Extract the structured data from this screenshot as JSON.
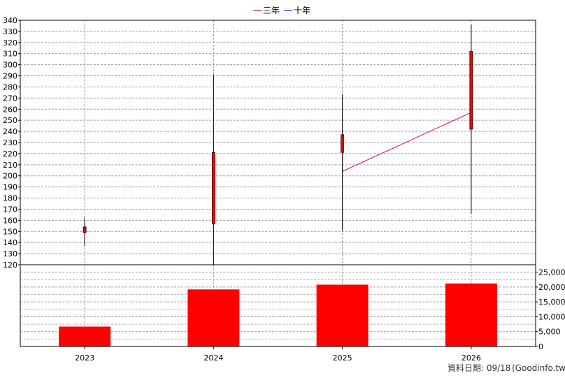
{
  "legend": [
    {
      "name": "三年",
      "color": "#cc0066"
    },
    {
      "name": "十年",
      "color": "#6600cc"
    }
  ],
  "footer": {
    "date_label": "資料日期: 09/18",
    "source": "(Goodinfo.tw)"
  },
  "chart_data": [
    {
      "type": "candlestick",
      "categories": [
        "2023",
        "2024",
        "2025",
        "2026"
      ],
      "series": [
        {
          "values": [
            {
              "high": 162,
              "low": 137,
              "open": 149,
              "close": 154
            },
            {
              "high": 291,
              "low": 120,
              "open": 157,
              "close": 221
            },
            {
              "high": 273,
              "low": 151,
              "open": 221,
              "close": 237
            },
            {
              "high": 336,
              "low": 166,
              "open": 242,
              "close": 312
            }
          ],
          "color": "#ff0000"
        }
      ],
      "lines": [
        {
          "name": "三年",
          "color": "#cc0066",
          "points": [
            {
              "x": "2025",
              "y": 204
            },
            {
              "x": "2026",
              "y": 257
            }
          ]
        }
      ],
      "ylim": [
        120,
        340
      ],
      "yticks": [
        120,
        130,
        140,
        150,
        160,
        170,
        180,
        190,
        200,
        210,
        220,
        230,
        240,
        250,
        260,
        270,
        280,
        290,
        300,
        310,
        320,
        330,
        340
      ],
      "grid": true,
      "legend_position": "top-center"
    },
    {
      "type": "bar",
      "categories": [
        "2023",
        "2024",
        "2025",
        "2026"
      ],
      "values": [
        6700,
        19200,
        20800,
        21200
      ],
      "ylim": [
        0,
        27500
      ],
      "yticks": [
        0,
        5000,
        10000,
        15000,
        20000,
        25000
      ],
      "ytick_labels": [
        "0",
        "5,000",
        "10,000",
        "15,000",
        "20,000",
        "25,000"
      ],
      "color": "#ff0000",
      "grid": true
    }
  ]
}
